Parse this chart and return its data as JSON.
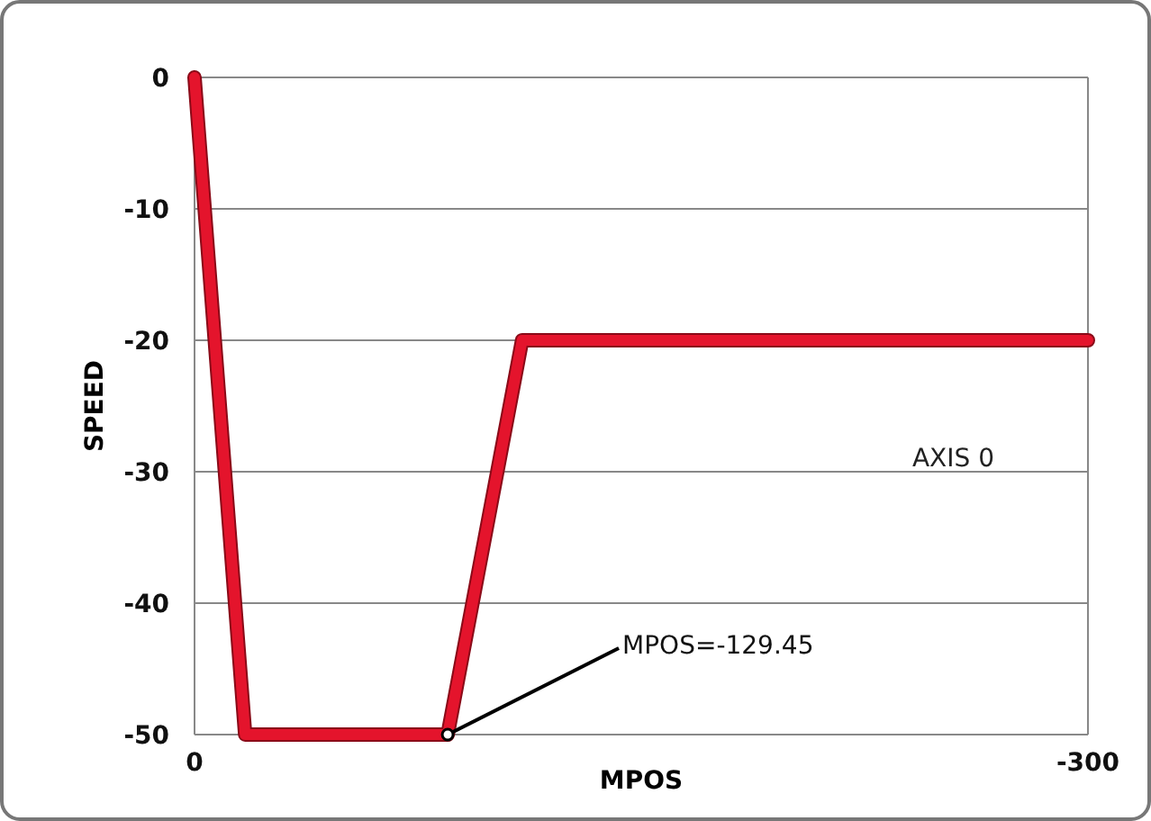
{
  "chart_data": {
    "type": "line",
    "xlabel": "MPOS",
    "ylabel": "SPEED",
    "xlim": [
      0,
      -300
    ],
    "xticks": [
      0,
      -300
    ],
    "ylim": [
      -50,
      0
    ],
    "yticks": [
      0,
      -10,
      -20,
      -30,
      -40,
      -50
    ],
    "grid": "y",
    "series": [
      {
        "name": "AXIS 0",
        "color": "#e4142c",
        "x": [
          0,
          -17,
          -85,
          -110,
          -300
        ],
        "values": [
          0,
          -50,
          -50,
          -20,
          -20
        ]
      }
    ],
    "annotations": [
      {
        "text": "MPOS=-129.45",
        "x": -85,
        "y": -50
      }
    ]
  }
}
